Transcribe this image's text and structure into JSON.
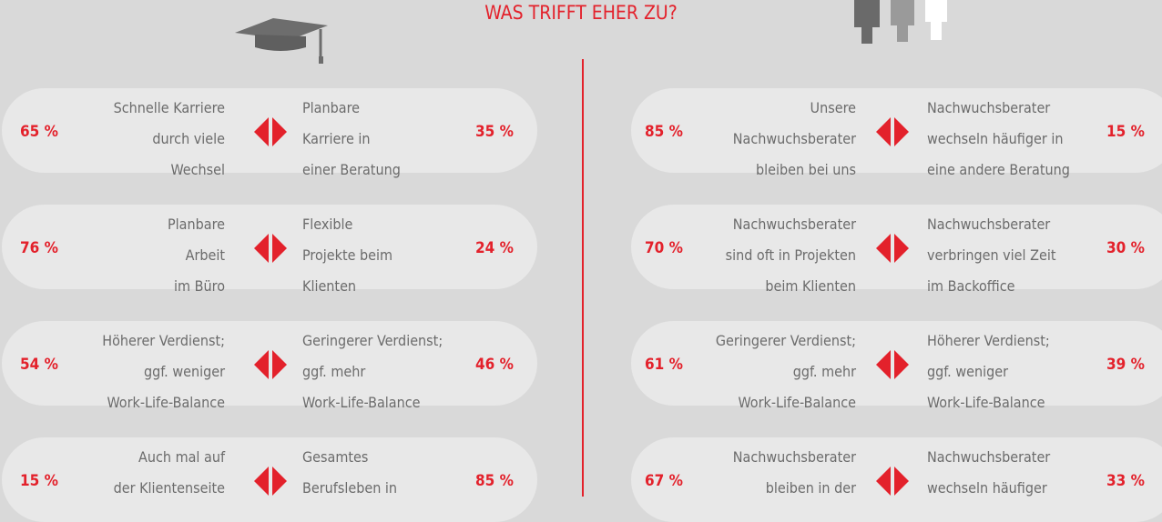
{
  "title": "WAS TRIFFT EHER ZU?",
  "panels": [
    {
      "rows": [
        {
          "left_pct": "65 %",
          "left_lines": [
            "Schnelle Karriere",
            "durch viele",
            "Wechsel"
          ],
          "right_lines": [
            "Planbare",
            "Karriere in",
            "einer Beratung"
          ],
          "right_pct": "35 %"
        },
        {
          "left_pct": "76 %",
          "left_lines": [
            "Planbare",
            "Arbeit",
            "im Büro"
          ],
          "right_lines": [
            "Flexible",
            "Projekte beim",
            "Klienten"
          ],
          "right_pct": "24 %"
        },
        {
          "left_pct": "54 %",
          "left_lines": [
            "Höherer Verdienst;",
            "ggf. weniger",
            "Work-Life-Balance"
          ],
          "right_lines": [
            "Geringerer Verdienst;",
            "ggf. mehr",
            "Work-Life-Balance"
          ],
          "right_pct": "46 %"
        },
        {
          "left_pct": "15 %",
          "left_lines": [
            "Auch mal auf",
            "der Klientenseite"
          ],
          "right_lines": [
            "Gesamtes",
            "Berufsleben in"
          ],
          "right_pct": "85 %"
        }
      ]
    },
    {
      "rows": [
        {
          "left_pct": "85 %",
          "left_lines": [
            "Unsere",
            "Nachwuchsberater",
            "bleiben bei uns"
          ],
          "right_lines": [
            "Nachwuchsberater",
            "wechseln häufiger in",
            "eine andere Beratung"
          ],
          "right_pct": "15 %"
        },
        {
          "left_pct": "70 %",
          "left_lines": [
            "Nachwuchsberater",
            "sind oft in Projekten",
            "beim Klienten"
          ],
          "right_lines": [
            "Nachwuchsberater",
            "verbringen viel Zeit",
            "im Backoffice"
          ],
          "right_pct": "30 %"
        },
        {
          "left_pct": "61 %",
          "left_lines": [
            "Geringerer Verdienst;",
            "ggf. mehr",
            "Work-Life-Balance"
          ],
          "right_lines": [
            "Höherer Verdienst;",
            "ggf. weniger",
            "Work-Life-Balance"
          ],
          "right_pct": "39 %"
        },
        {
          "left_pct": "67 %",
          "left_lines": [
            "Nachwuchsberater",
            "bleiben in der"
          ],
          "right_lines": [
            "Nachwuchsberater",
            "wechseln häufiger"
          ],
          "right_pct": "33 %"
        }
      ]
    }
  ]
}
